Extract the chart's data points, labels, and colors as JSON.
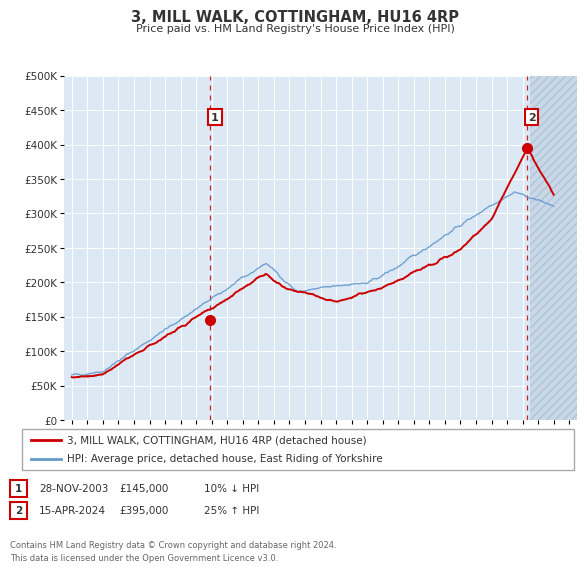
{
  "title": "3, MILL WALK, COTTINGHAM, HU16 4RP",
  "subtitle": "Price paid vs. HM Land Registry's House Price Index (HPI)",
  "background_color": "#ffffff",
  "plot_background_color": "#dce9f5",
  "plot_background_future": "#c8d8e8",
  "grid_color": "#ffffff",
  "ylim": [
    0,
    500000
  ],
  "yticks": [
    0,
    50000,
    100000,
    150000,
    200000,
    250000,
    300000,
    350000,
    400000,
    450000,
    500000
  ],
  "ytick_labels": [
    "£0",
    "£50K",
    "£100K",
    "£150K",
    "£200K",
    "£250K",
    "£300K",
    "£350K",
    "£400K",
    "£450K",
    "£500K"
  ],
  "xlim_start": 1994.5,
  "xlim_end": 2027.5,
  "future_start": 2024.5,
  "xticks": [
    1995,
    1996,
    1997,
    1998,
    1999,
    2000,
    2001,
    2002,
    2003,
    2004,
    2005,
    2006,
    2007,
    2008,
    2009,
    2010,
    2011,
    2012,
    2013,
    2014,
    2015,
    2016,
    2017,
    2018,
    2019,
    2020,
    2021,
    2022,
    2023,
    2024,
    2025,
    2026,
    2027
  ],
  "red_line_color": "#cc0000",
  "blue_line_color": "#6699cc",
  "marker1_x": 2003.917,
  "marker1_y": 145000,
  "marker2_x": 2024.29,
  "marker2_y": 395000,
  "vline1_x": 2003.917,
  "vline2_x": 2024.29,
  "legend_label_red": "3, MILL WALK, COTTINGHAM, HU16 4RP (detached house)",
  "legend_label_blue": "HPI: Average price, detached house, East Riding of Yorkshire",
  "table_row1": [
    "1",
    "28-NOV-2003",
    "£145,000",
    "10% ↓ HPI"
  ],
  "table_row2": [
    "2",
    "15-APR-2024",
    "£395,000",
    "25% ↑ HPI"
  ],
  "footer": "Contains HM Land Registry data © Crown copyright and database right 2024.\nThis data is licensed under the Open Government Licence v3.0."
}
